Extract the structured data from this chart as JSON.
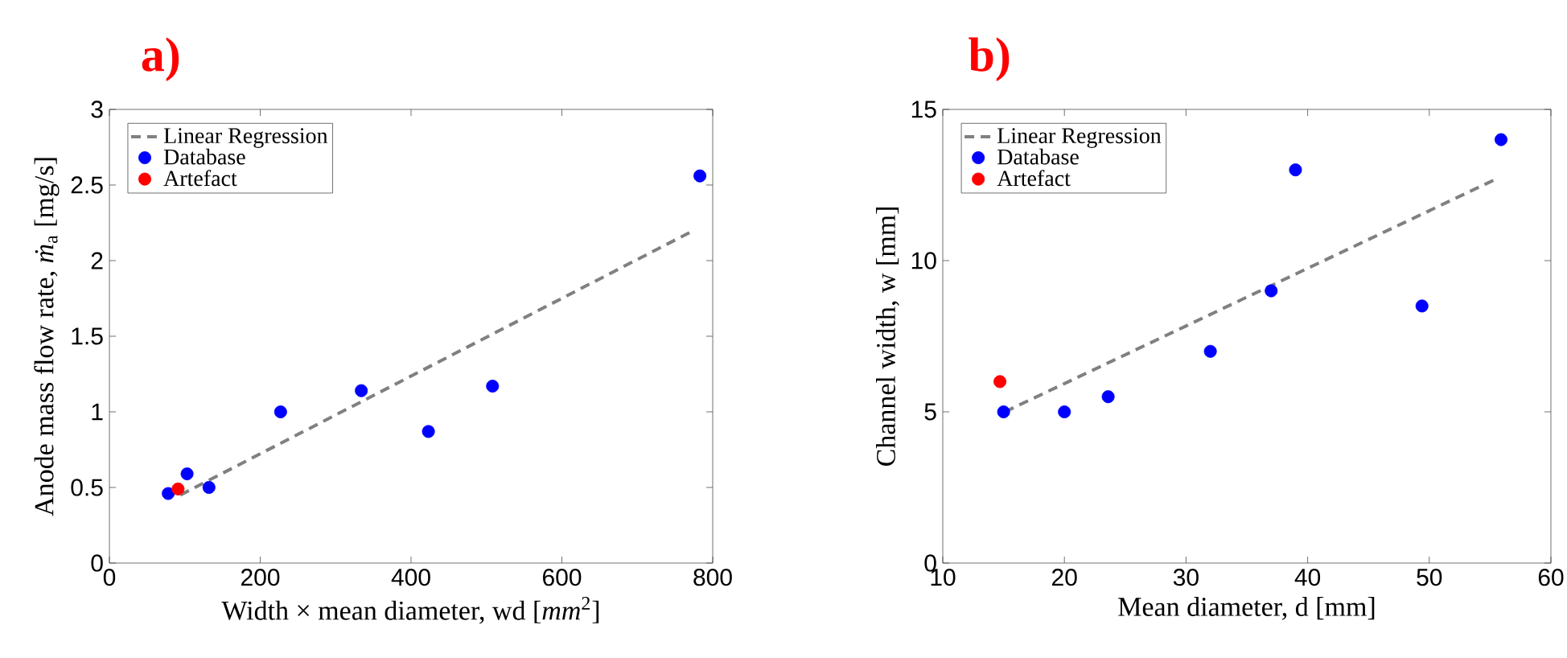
{
  "chart_data": [
    {
      "type": "scatter",
      "title": "a)",
      "xlabel": "Width × mean diameter, wd [*mm*$^{2}$]",
      "ylabel": "Anode mass flow rate, *ṁ*$_{a}$ [mg/s]",
      "xlim": [
        0,
        800
      ],
      "ylim": [
        0,
        3
      ],
      "xticks": [
        0,
        200,
        400,
        600,
        800
      ],
      "yticks": [
        0,
        0.5,
        1,
        1.5,
        2,
        2.5,
        3
      ],
      "legend": "top left",
      "series": [
        {
          "name": "Linear Regression",
          "type": "line",
          "line_style": "dashed",
          "marker": "none",
          "color": "#808080",
          "x": [
            94,
            771
          ],
          "values": [
            0.45,
            2.19
          ]
        },
        {
          "name": "Database",
          "type": "scatter",
          "marker": "circle",
          "color": "#0000ff",
          "x": [
            78,
            103,
            132,
            227,
            334,
            423,
            508,
            783
          ],
          "values": [
            0.46,
            0.59,
            0.5,
            1.0,
            1.14,
            0.87,
            1.17,
            2.56
          ]
        },
        {
          "name": "Artefact",
          "type": "scatter",
          "marker": "circle",
          "color": "#ff0000",
          "x": [
            91
          ],
          "values": [
            0.49
          ]
        }
      ]
    },
    {
      "type": "scatter",
      "title": "b)",
      "xlabel": "Mean diameter, d [mm]",
      "ylabel": "Channel width, w [mm]",
      "xlim": [
        10,
        60
      ],
      "ylim": [
        0,
        15
      ],
      "xticks": [
        10,
        20,
        30,
        40,
        50,
        60
      ],
      "yticks": [
        0,
        5,
        10,
        15
      ],
      "legend": "top left",
      "series": [
        {
          "name": "Linear Regression",
          "type": "line",
          "line_style": "dashed",
          "marker": "none",
          "color": "#808080",
          "x": [
            15.1,
            55.3
          ],
          "values": [
            5.0,
            12.66
          ]
        },
        {
          "name": "Database",
          "type": "scatter",
          "marker": "circle",
          "color": "#0000ff",
          "x": [
            15,
            20,
            23.6,
            32,
            37,
            39,
            49.4,
            55.9
          ],
          "values": [
            5,
            5,
            5.5,
            7,
            9,
            13,
            8.5,
            14
          ]
        },
        {
          "name": "Artefact",
          "type": "scatter",
          "marker": "circle",
          "color": "#ff0000",
          "x": [
            14.7
          ],
          "values": [
            6
          ]
        }
      ]
    }
  ]
}
